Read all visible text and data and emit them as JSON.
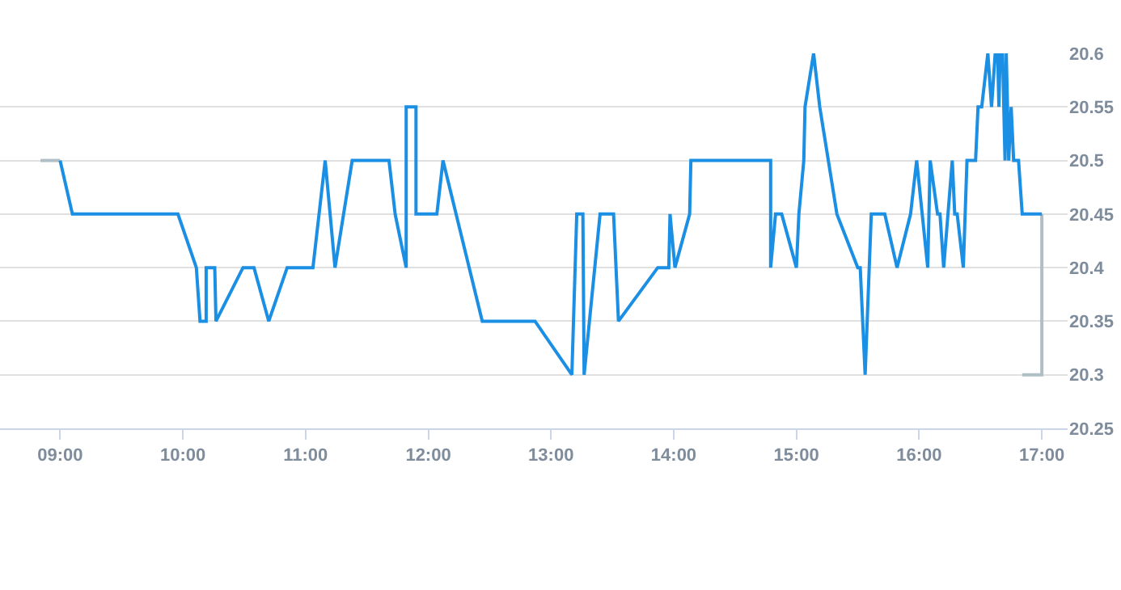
{
  "chart_data": {
    "type": "line",
    "series": [
      {
        "color": "#b0bec5",
        "x": [
          8.84,
          9.0,
          null,
          16.84,
          17.0,
          17.0
        ],
        "values": [
          20.5,
          20.5,
          null,
          20.3,
          20.3,
          20.45
        ]
      },
      {
        "color": "#1a8fe3",
        "x": [
          9.0,
          9.1,
          9.96,
          10.11,
          10.14,
          10.19,
          10.19,
          10.26,
          10.27,
          10.49,
          10.58,
          10.7,
          10.85,
          11.06,
          11.16,
          11.24,
          11.38,
          11.68,
          11.73,
          11.82,
          11.82,
          11.9,
          11.9,
          12.07,
          12.12,
          12.44,
          12.87,
          13.17,
          13.21,
          13.26,
          13.27,
          13.4,
          13.51,
          13.55,
          13.87,
          13.96,
          13.97,
          14.01,
          14.13,
          14.14,
          14.79,
          14.79,
          14.83,
          14.88,
          15.0,
          15.02,
          15.06,
          15.07,
          15.14,
          15.19,
          15.33,
          15.5,
          15.52,
          15.56,
          15.61,
          15.72,
          15.82,
          15.93,
          15.98,
          16.07,
          16.09,
          16.15,
          16.17,
          16.2,
          16.27,
          16.29,
          16.31,
          16.36,
          16.39,
          16.46,
          16.48,
          16.51,
          16.56,
          16.59,
          16.62,
          16.64,
          16.65,
          16.66,
          16.68,
          16.7,
          16.71,
          16.73,
          16.75,
          16.77,
          16.81,
          16.84,
          17.0
        ],
        "values": [
          20.5,
          20.45,
          20.45,
          20.4,
          20.35,
          20.35,
          20.4,
          20.4,
          20.35,
          20.4,
          20.4,
          20.35,
          20.4,
          20.4,
          20.5,
          20.4,
          20.5,
          20.5,
          20.45,
          20.4,
          20.55,
          20.55,
          20.45,
          20.45,
          20.5,
          20.35,
          20.35,
          20.3,
          20.45,
          20.45,
          20.3,
          20.45,
          20.45,
          20.35,
          20.4,
          20.4,
          20.45,
          20.4,
          20.45,
          20.5,
          20.5,
          20.4,
          20.45,
          20.45,
          20.4,
          20.45,
          20.5,
          20.55,
          20.6,
          20.55,
          20.45,
          20.4,
          20.4,
          20.3,
          20.45,
          20.45,
          20.4,
          20.45,
          20.5,
          20.4,
          20.5,
          20.45,
          20.45,
          20.4,
          20.5,
          20.45,
          20.45,
          20.4,
          20.5,
          20.5,
          20.55,
          20.55,
          20.6,
          20.55,
          20.6,
          20.6,
          20.55,
          20.6,
          20.6,
          20.5,
          20.6,
          20.5,
          20.55,
          20.5,
          20.5,
          20.45,
          20.45
        ]
      }
    ],
    "xlim": [
      8.51,
      17.21
    ],
    "xticks": [
      {
        "value": 9,
        "label": "09:00"
      },
      {
        "value": 10,
        "label": "10:00"
      },
      {
        "value": 11,
        "label": "11:00"
      },
      {
        "value": 12,
        "label": "12:00"
      },
      {
        "value": 13,
        "label": "13:00"
      },
      {
        "value": 14,
        "label": "14:00"
      },
      {
        "value": 15,
        "label": "15:00"
      },
      {
        "value": 16,
        "label": "16:00"
      },
      {
        "value": 17,
        "label": "17:00"
      }
    ],
    "ylim": [
      20.25,
      20.6
    ],
    "yticks": [
      20.25,
      20.3,
      20.35,
      20.4,
      20.45,
      20.5,
      20.55,
      20.6
    ],
    "grid": "y",
    "marker": "none",
    "line_style": "solid"
  }
}
